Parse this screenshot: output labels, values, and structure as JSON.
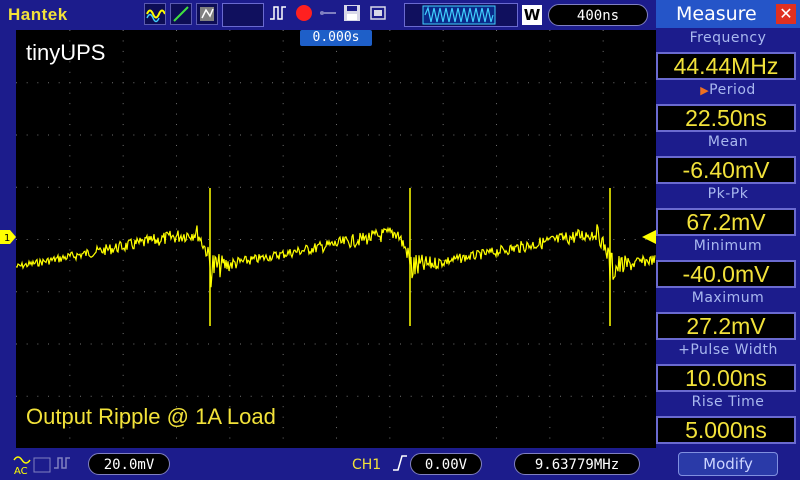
{
  "brand": "Hantek",
  "timebase": "400ns",
  "wave_mode_letter": "W",
  "trigger_position": "0.000s",
  "overlay": {
    "title": "tinyUPS",
    "subtitle": "Output Ripple @ 1A Load"
  },
  "bottom": {
    "volts_div": "20.0mV",
    "channel": "CH1",
    "trigger_level": "0.00V",
    "frequency": "9.63779MHz"
  },
  "measure": {
    "title": "Measure",
    "items": [
      {
        "label": "Frequency",
        "value": "44.44MHz"
      },
      {
        "label": "Period",
        "value": "22.50ns"
      },
      {
        "label": "Mean",
        "value": "-6.40mV"
      },
      {
        "label": "Pk-Pk",
        "value": "67.2mV"
      },
      {
        "label": "Minimum",
        "value": "-40.0mV"
      },
      {
        "label": "Maximum",
        "value": "27.2mV"
      },
      {
        "label": "+Pulse Width",
        "value": "10.00ns"
      },
      {
        "label": "Rise Time",
        "value": "5.000ns"
      }
    ],
    "modify_label": "Modify"
  },
  "colors": {
    "trace": "#ffff00",
    "background": "#1c1c8c",
    "accent": "#f2e23a"
  }
}
